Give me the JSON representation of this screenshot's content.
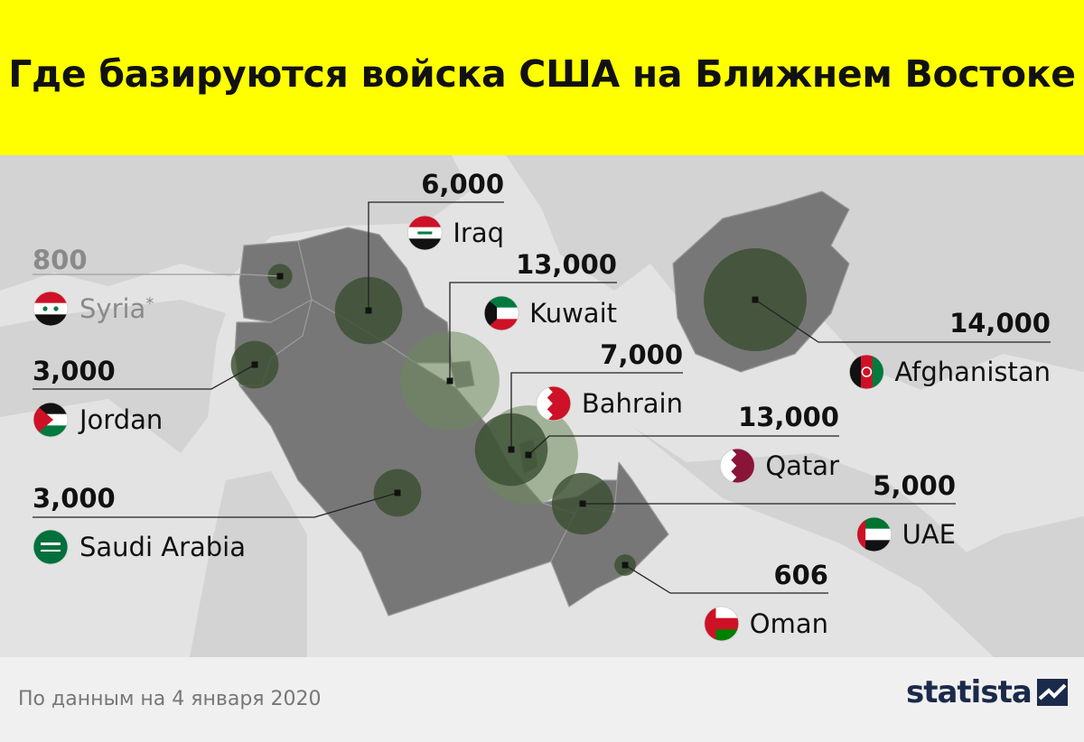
{
  "title": "Где базируются войска США на Ближнем Востоке",
  "source": "По данным на 4 января 2020",
  "brand": "statista",
  "colors": {
    "header_bg": "#ffff00",
    "sea": "#e3e3e3",
    "land_other": "#d0d0d0",
    "land_highlight": "#777777",
    "bubble": "#3a4d30",
    "text": "#111111",
    "muted_text": "#8a8a8a"
  },
  "chart_data": {
    "type": "bubble-map",
    "title": "Где базируются войска США на Ближнем Востоке",
    "unit": "troops",
    "countries": [
      {
        "name": "Syria",
        "suffix": "*",
        "value": 800,
        "value_label": "800",
        "muted": true,
        "flag": "syria-flag"
      },
      {
        "name": "Iraq",
        "value": 6000,
        "value_label": "6,000",
        "flag": "iraq-flag"
      },
      {
        "name": "Kuwait",
        "value": 13000,
        "value_label": "13,000",
        "flag": "kuwait-flag"
      },
      {
        "name": "Jordan",
        "value": 3000,
        "value_label": "3,000",
        "flag": "jordan-flag"
      },
      {
        "name": "Bahrain",
        "value": 7000,
        "value_label": "7,000",
        "flag": "bahrain-flag"
      },
      {
        "name": "Afghanistan",
        "value": 14000,
        "value_label": "14,000",
        "flag": "afghanistan-flag"
      },
      {
        "name": "Qatar",
        "value": 13000,
        "value_label": "13,000",
        "flag": "qatar-flag"
      },
      {
        "name": "Saudi Arabia",
        "value": 3000,
        "value_label": "3,000",
        "flag": "saudi-arabia-flag"
      },
      {
        "name": "UAE",
        "value": 5000,
        "value_label": "5,000",
        "flag": "uae-flag"
      },
      {
        "name": "Oman",
        "value": 606,
        "value_label": "606",
        "flag": "oman-flag"
      }
    ]
  }
}
